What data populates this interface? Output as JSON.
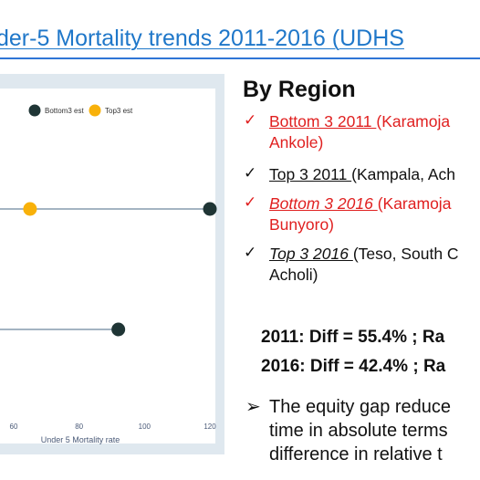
{
  "title": "der-5 Mortality trends 2011-2016 (UDHS",
  "chart_data": {
    "type": "dot",
    "xlabel": "Under 5 Mortality rate",
    "x_ticks": [
      60,
      80,
      100,
      120
    ],
    "xlim": [
      55,
      122
    ],
    "legend": [
      {
        "name": "Bottom3 est",
        "color": "#1f3535"
      },
      {
        "name": "Top3 est",
        "color": "#f8b10a"
      }
    ],
    "series": [
      {
        "row": 1,
        "points": [
          {
            "series": "Top3 est",
            "value": 65
          },
          {
            "series": "Bottom3 est",
            "value": 120
          }
        ]
      },
      {
        "row": 2,
        "points": [
          {
            "series": "Bottom3 est",
            "value": 92
          }
        ]
      }
    ],
    "grid": false,
    "legend_position": "top"
  },
  "region": {
    "heading": "By Region",
    "bullets": [
      {
        "check": "✓",
        "lead": "Bottom 3  2011 ",
        "rest": "(Karamoja",
        "line2": "Ankole)",
        "color": "#e02020",
        "italic": false
      },
      {
        "check": "✓",
        "lead": "Top 3  2011 ",
        "rest": "(Kampala, Ach",
        "line2": "",
        "color": "#111111",
        "italic": false
      },
      {
        "check": "✓",
        "lead": "Bottom 3  2016 ",
        "rest": "(Karamoja",
        "line2": "Bunyoro)",
        "color": "#e02020",
        "italic": true
      },
      {
        "check": "✓",
        "lead": " Top 3  2016 ",
        "rest": "(Teso, South C",
        "line2": "Acholi)",
        "color": "#111111",
        "italic": true
      }
    ],
    "stats": [
      "2011: Diff = 55.4% ; Ra",
      "2016: Diff = 42.4% ; Ra"
    ],
    "conclusion": {
      "arrow": "➢",
      "lines": [
        "The equity gap reduce",
        "time in absolute terms",
        "difference in relative t"
      ]
    }
  }
}
